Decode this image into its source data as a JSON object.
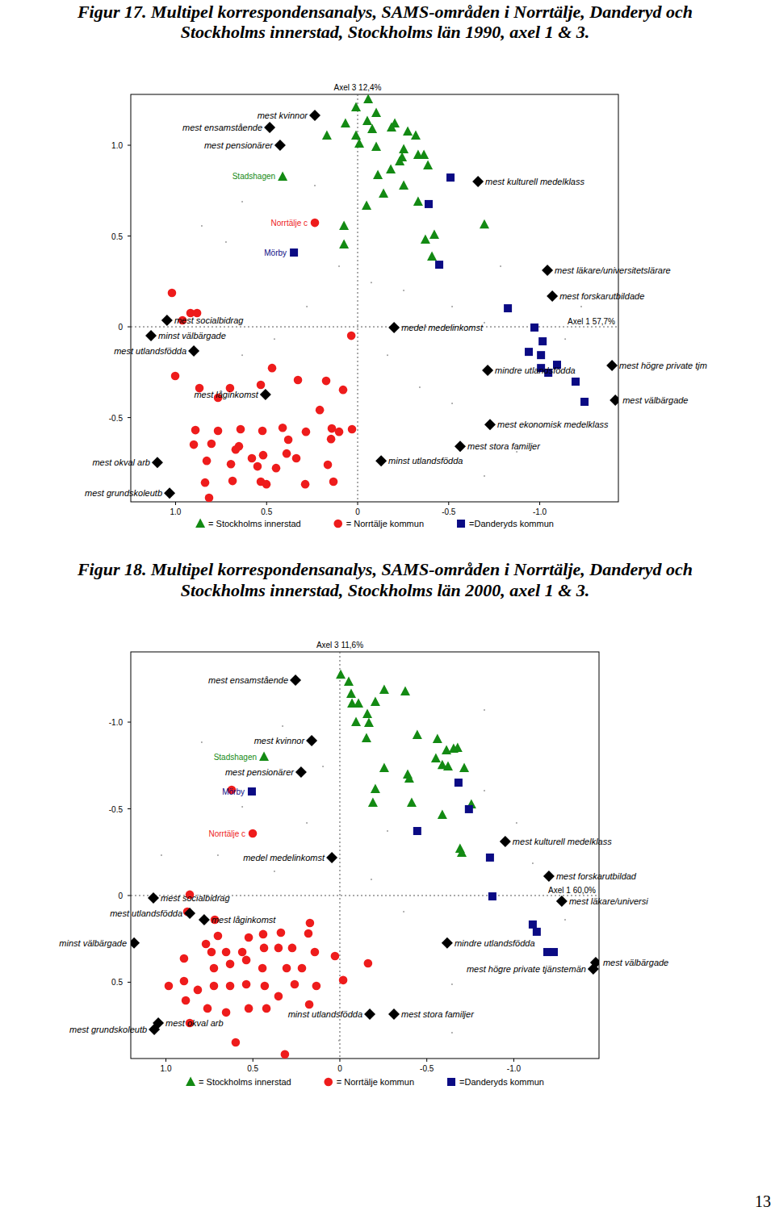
{
  "chart_data": [
    {
      "type": "scatter",
      "title": [
        "Figur 17. Multipel korrespondensanalys, SAMS-områden i Norrtälje, Danderyd och",
        "Stockholms innerstad, Stockholms län 1990, axel 1 & 3."
      ],
      "xlabel": "Axel 1 57,7%",
      "ylabel": "Axel 3 12,4%",
      "xlim": [
        1.246,
        -1.432
      ],
      "ylim": [
        -0.964,
        1.28
      ],
      "xticks": [
        {
          "value": 1,
          "label": "1.0"
        },
        0.5,
        0,
        -0.5,
        {
          "value": -1,
          "label": "-1.0"
        }
      ],
      "yticks": [
        {
          "value": 1,
          "label": "1.0"
        },
        0.5,
        0,
        -0.5
      ],
      "legend": "bottom",
      "series": [
        {
          "name": "= Stockholms innerstad",
          "color": "#138a13",
          "marker": "triangle",
          "x": [
            0.412,
            0.009,
            -0.058,
            0.067,
            -0.053,
            -0.102,
            -0.08,
            0.009,
            0.169,
            -0.204,
            -0.186,
            -0.275,
            -0.319,
            -0.009,
            -0.102,
            -0.253,
            -0.332,
            -0.364,
            -0.386,
            -0.244,
            -0.231,
            -0.182,
            -0.111,
            -0.253,
            -0.142,
            -0.332,
            -0.049,
            0.075,
            0.075,
            -0.372,
            -0.421,
            -0.408,
            -0.696
          ],
          "y": [
            0.827,
            1.209,
            1.253,
            1.12,
            1.133,
            1.178,
            1.089,
            1.053,
            1.053,
            1.12,
            1.098,
            1.076,
            1.053,
            1.009,
            0.991,
            0.978,
            0.947,
            0.947,
            0.889,
            0.933,
            0.911,
            0.867,
            0.836,
            0.778,
            0.733,
            0.689,
            0.667,
            0.556,
            0.453,
            0.48,
            0.507,
            0.387,
            0.564
          ]
        },
        {
          "name": "= Norrtälje kommun",
          "color": "#ee1c1c",
          "marker": "circle",
          "x": [
            0.235,
            1.02,
            0.918,
            0.882,
            0.962,
            0.035,
            1.002,
            0.869,
            0.767,
            0.701,
            0.47,
            0.532,
            0.328,
            0.173,
            0.08,
            0.208,
            0.284,
            0.142,
            0.102,
            0.031,
            0.146,
            0.643,
            0.767,
            0.891,
            0.652,
            0.523,
            0.412,
            0.381,
            0.9,
            0.803,
            0.67,
            0.581,
            0.519,
            0.39,
            0.337,
            0.829,
            0.696,
            0.55,
            0.448,
            0.164,
            0.838,
            0.687,
            0.532,
            0.501,
            0.288,
            0.133,
            0.816
          ],
          "y": [
            0.573,
            0.187,
            0.076,
            0.076,
            0.036,
            -0.049,
            -0.271,
            -0.338,
            -0.391,
            -0.338,
            -0.227,
            -0.32,
            -0.293,
            -0.298,
            -0.347,
            -0.458,
            -0.578,
            -0.56,
            -0.578,
            -0.564,
            -0.618,
            -0.564,
            -0.573,
            -0.569,
            -0.658,
            -0.573,
            -0.556,
            -0.622,
            -0.649,
            -0.644,
            -0.676,
            -0.724,
            -0.707,
            -0.698,
            -0.724,
            -0.738,
            -0.756,
            -0.769,
            -0.778,
            -0.76,
            -0.858,
            -0.849,
            -0.853,
            -0.867,
            -0.867,
            -0.853,
            -0.942
          ]
        },
        {
          "name": "=Danderyds kommun",
          "color": "#0b0b84",
          "marker": "square",
          "x": [
            0.35,
            -0.51,
            -0.39,
            -0.448,
            -0.825,
            -0.971,
            -1.016,
            -0.94,
            -1.007,
            -1.007,
            -1.047,
            -1.095,
            -1.197,
            -1.246
          ],
          "y": [
            0.409,
            0.822,
            0.676,
            0.342,
            0.102,
            -0.004,
            -0.08,
            -0.138,
            -0.156,
            -0.227,
            -0.253,
            -0.209,
            -0.302,
            -0.413
          ]
        }
      ],
      "annotations": [
        {
          "text": "Stadshagen",
          "series": 0,
          "index": 0
        },
        {
          "text": "Norrtälje c",
          "series": 1,
          "index": 0
        },
        {
          "text": "Mörby",
          "series": 2,
          "index": 0
        }
      ],
      "variables": {
        "color": "#000000",
        "marker": "diamond",
        "labels": [
          "mest kvinnor",
          "mest ensamstående",
          "mest pensionärer",
          "mest kulturell medelklass",
          "mest läkare/universitetslärare",
          "mest forskarutbildade",
          "mest socialbidrag",
          "minst välbärgade",
          "mest utlandsfödda",
          "medel medelinkomst",
          "mest högre private tjm",
          "mindre utlandsfödda",
          "mest låginkomst",
          "mest välbärgade",
          "mest ekonomisk medelklass",
          "mest stora familjer",
          "mest okval arb",
          "minst utlandsfödda",
          "mest grundskoleutb"
        ],
        "x": [
          0.235,
          0.483,
          0.426,
          -0.661,
          -1.042,
          -1.069,
          1.047,
          1.135,
          0.9,
          -0.2,
          -1.397,
          -0.714,
          0.506,
          -1.415,
          -0.727,
          -0.563,
          1.1,
          -0.129,
          1.033
        ],
        "y": [
          1.164,
          1.098,
          1.0,
          0.8,
          0.311,
          0.169,
          0.036,
          -0.049,
          -0.133,
          -0.004,
          -0.213,
          -0.24,
          -0.373,
          -0.404,
          -0.538,
          -0.658,
          -0.747,
          -0.738,
          -0.916
        ]
      },
      "background": {
        "color": "#9a9a9a",
        "x": [
          0.634,
          0.723,
          0.102,
          -0.075,
          -0.253,
          -0.519,
          -0.696,
          -0.785,
          0.279,
          0.457,
          0.634,
          -0.164,
          -0.341,
          -0.519,
          -0.696,
          -0.874,
          -1.14,
          -1.228,
          0.856,
          0.235
        ],
        "y": [
          0.689,
          0.467,
          0.333,
          0.244,
          0.2,
          0.111,
          0.022,
          0.333,
          0.111,
          -0.067,
          -0.156,
          -0.156,
          -0.333,
          -0.422,
          -0.822,
          -0.689,
          -0.067,
          0.111,
          0.556,
          0.778
        ]
      }
    },
    {
      "type": "scatter",
      "title": [
        "Figur 18. Multipel korrespondensanalys, SAMS-områden i Norrtälje, Danderyd och",
        "Stockholms innerstad, Stockholms län 2000, axel 1 & 3."
      ],
      "xlabel": "Axel 1 60,0%",
      "ylabel": "Axel 3 11,6%",
      "xlim": [
        1.202,
        -1.49
      ],
      "ylim": [
        0.94,
        -1.405
      ],
      "xticks": [
        {
          "value": 1,
          "label": "1.0"
        },
        0.5,
        0,
        -0.5,
        {
          "value": -1,
          "label": "-1.0"
        }
      ],
      "yticks": [
        {
          "value": -1,
          "label": "-1.0"
        },
        -0.5,
        0,
        0.5
      ],
      "legend": "bottom",
      "series": [
        {
          "name": "= Stockholms innerstad",
          "color": "#138a13",
          "marker": "triangle",
          "x": [
            0.436,
            -0.005,
            -0.051,
            -0.07,
            -0.107,
            -0.158,
            -0.093,
            -0.167,
            -0.153,
            -0.065,
            -0.376,
            -0.255,
            -0.204,
            -0.445,
            -0.561,
            -0.654,
            -0.613,
            -0.677,
            -0.552,
            -0.589,
            -0.622,
            -0.715,
            -0.255,
            -0.39,
            -0.399,
            -0.204,
            -0.413,
            -0.19,
            -0.756,
            -0.589,
            -0.691,
            -0.701
          ],
          "y": [
            -0.8,
            -1.274,
            -1.233,
            -1.107,
            -1.107,
            -1.047,
            -1.0,
            -0.995,
            -0.907,
            -1.163,
            -1.177,
            -1.186,
            -1.116,
            -0.926,
            -0.902,
            -0.847,
            -0.837,
            -0.851,
            -0.791,
            -0.753,
            -0.744,
            -0.735,
            -0.735,
            -0.698,
            -0.674,
            -0.614,
            -0.535,
            -0.535,
            -0.526,
            -0.465,
            -0.27,
            -0.247
          ]
        },
        {
          "name": "= Norrtälje kommun",
          "color": "#ee1c1c",
          "marker": "circle",
          "x": [
            0.501,
            0.622,
            0.863,
            0.877,
            0.719,
            0.77,
            0.701,
            0.524,
            0.441,
            0.339,
            0.181,
            0.172,
            0.738,
            0.654,
            0.561,
            0.436,
            0.353,
            0.274,
            0.144,
            0.896,
            0.896,
            0.817,
            0.724,
            0.631,
            0.538,
            0.445,
            0.306,
            0.218,
            0.028,
            -0.162,
            0.984,
            0.724,
            0.631,
            0.538,
            0.432,
            0.353,
            0.26,
            0.135,
            -0.019,
            0.886,
            0.761,
            0.654,
            0.524,
            0.422,
            0.863,
            0.599,
            0.316,
            0.176
          ],
          "y": [
            -0.358,
            -0.609,
            -0.005,
            0.093,
            0.14,
            0.279,
            0.233,
            0.242,
            0.223,
            0.214,
            0.219,
            0.158,
            0.326,
            0.326,
            0.326,
            0.302,
            0.302,
            0.302,
            0.326,
            0.363,
            0.493,
            0.544,
            0.419,
            0.395,
            0.372,
            0.419,
            0.419,
            0.419,
            0.349,
            0.391,
            0.521,
            0.521,
            0.521,
            0.512,
            0.521,
            0.581,
            0.512,
            0.521,
            0.488,
            0.605,
            0.651,
            0.674,
            0.651,
            0.651,
            0.735,
            0.847,
            0.916,
            0.628
          ]
        },
        {
          "name": "=Danderyds kommun",
          "color": "#0b0b84",
          "marker": "square",
          "x": [
            0.506,
            -0.682,
            -0.742,
            -0.445,
            -0.863,
            -0.877,
            -1.109,
            -1.132,
            -1.193,
            -1.23
          ],
          "y": [
            -0.6,
            -0.651,
            -0.498,
            -0.372,
            -0.219,
            0.005,
            0.167,
            0.209,
            0.326,
            0.326
          ]
        }
      ],
      "annotations": [
        {
          "text": "Stadshagen",
          "series": 0,
          "index": 0
        },
        {
          "text": "Norrtälje c",
          "series": 1,
          "index": 0
        },
        {
          "text": "Mörby",
          "series": 2,
          "index": 0
        }
      ],
      "variables": {
        "color": "#000000",
        "marker": "diamond",
        "labels": [
          "mest ensamstående",
          "mest kvinnor",
          "mest pensionärer",
          "medel medelinkomst",
          "mest kulturell medelklass",
          "mest forskarutbildad",
          "mest läkare/universi",
          "mest socialbidrag",
          "mest utlandsfödda",
          "mest låginkomst",
          "minst välbärgade",
          "mindre utlandsfödda",
          "mest välbärgade",
          "mest högre private tjänstemän",
          "minst utlandsfödda",
          "mest stora familjer",
          "mest okval arb",
          "mest grundskoleutb"
        ],
        "x": [
          0.255,
          0.162,
          0.223,
          0.046,
          -0.951,
          -1.202,
          -1.276,
          1.072,
          0.863,
          0.78,
          1.183,
          -0.617,
          -1.471,
          -1.457,
          -0.172,
          -0.311,
          1.044,
          1.067
        ],
        "y": [
          -1.242,
          -0.893,
          -0.712,
          -0.219,
          -0.312,
          -0.112,
          0.033,
          0.014,
          0.102,
          0.14,
          0.274,
          0.274,
          0.386,
          0.423,
          0.684,
          0.684,
          0.735,
          0.772
        ]
      },
      "background": {
        "color": "#9a9a9a",
        "x": [
          0.561,
          0.329,
          0.097,
          -0.831,
          -1.016,
          -1.109,
          -1.295,
          -0.923,
          -0.645,
          -0.367,
          -0.181,
          0.376,
          0.701,
          1.026,
          -0.645,
          0.005,
          -0.274,
          0.19,
          0.794,
          -0.831
        ],
        "y": [
          -0.512,
          -0.977,
          -0.744,
          -0.605,
          -0.419,
          -0.186,
          0.14,
          0.419,
          0.512,
          0.093,
          -0.093,
          -0.14,
          -0.233,
          -0.233,
          0.791,
          0.837,
          -0.372,
          -0.419,
          -0.884,
          -1.07
        ]
      }
    }
  ],
  "page_number": "13"
}
